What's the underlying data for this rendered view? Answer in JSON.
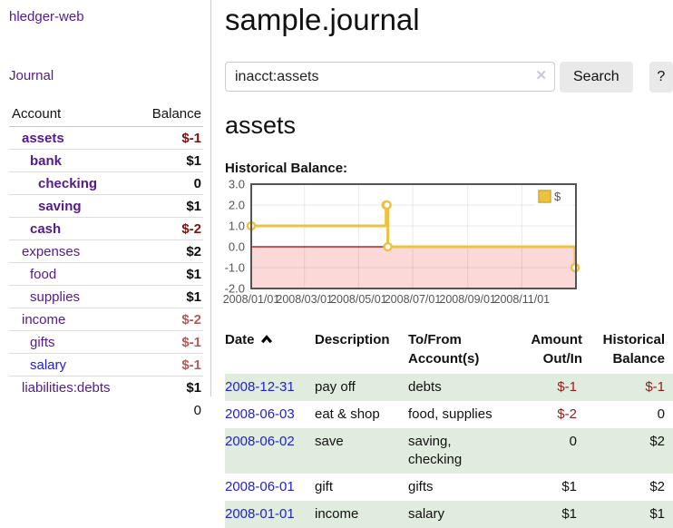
{
  "sidebar": {
    "app_title": "hledger-web",
    "nav_journal": "Journal",
    "table": {
      "headers": {
        "account": "Account",
        "balance": "Balance"
      },
      "rows": [
        {
          "name": "assets",
          "balance": "$-1",
          "depth": 1,
          "in_query": true,
          "negative": true,
          "dim": false,
          "link_blue": false
        },
        {
          "name": "bank",
          "balance": "$1",
          "depth": 2,
          "in_query": true,
          "negative": false,
          "dim": false,
          "link_blue": false
        },
        {
          "name": "checking",
          "balance": "0",
          "depth": 3,
          "in_query": true,
          "negative": false,
          "dim": false,
          "link_blue": false
        },
        {
          "name": "saving",
          "balance": "$1",
          "depth": 3,
          "in_query": true,
          "negative": false,
          "dim": false,
          "link_blue": false
        },
        {
          "name": "cash",
          "balance": "$-2",
          "depth": 2,
          "in_query": true,
          "negative": true,
          "dim": false,
          "link_blue": false
        },
        {
          "name": "expenses",
          "balance": "$2",
          "depth": 1,
          "in_query": false,
          "negative": false,
          "dim": false,
          "link_blue": false
        },
        {
          "name": "food",
          "balance": "$1",
          "depth": 2,
          "in_query": false,
          "negative": false,
          "dim": false,
          "link_blue": false
        },
        {
          "name": "supplies",
          "balance": "$1",
          "depth": 2,
          "in_query": false,
          "negative": false,
          "dim": false,
          "link_blue": false
        },
        {
          "name": "income",
          "balance": "$-2",
          "depth": 1,
          "in_query": false,
          "negative": true,
          "dim": true,
          "link_blue": false
        },
        {
          "name": "gifts",
          "balance": "$-1",
          "depth": 2,
          "in_query": false,
          "negative": true,
          "dim": true,
          "link_blue": false
        },
        {
          "name": "salary",
          "balance": "$-1",
          "depth": 2,
          "in_query": false,
          "negative": true,
          "dim": true,
          "link_blue": true
        },
        {
          "name": "liabilities:debts",
          "balance": "$1",
          "depth": 1,
          "in_query": false,
          "negative": false,
          "dim": false,
          "link_blue": false
        }
      ],
      "total": "0"
    }
  },
  "header": {
    "title": "sample.journal"
  },
  "search": {
    "query": "inacct:assets",
    "clear_icon": "✕",
    "button_label": "Search",
    "help_label": "?"
  },
  "account_page": {
    "title": "assets",
    "chart_label": "Historical Balance:"
  },
  "chart_data": {
    "type": "line",
    "title": "Historical Balance:",
    "step": true,
    "legend": "$",
    "legend_position": "top-right",
    "grid": true,
    "x_start": "2008/01/01",
    "x_end": "2009/01/01",
    "x_ticks": [
      "2008/01/01",
      "2008/03/01",
      "2008/05/01",
      "2008/07/01",
      "2008/09/01",
      "2008/11/01"
    ],
    "y_ticks": [
      "3.0",
      "2.0",
      "1.0",
      "0.0",
      "-1.0",
      "-2.0"
    ],
    "ylim": [
      -2,
      3
    ],
    "series": [
      {
        "name": "$",
        "color": "#edc240",
        "points": [
          [
            "2008/01/01",
            1
          ],
          [
            "2008/06/01",
            2
          ],
          [
            "2008/06/02",
            2
          ],
          [
            "2008/06/03",
            0
          ],
          [
            "2008/12/31",
            -1
          ]
        ]
      }
    ],
    "negative_region_fill": "#fbd9d9",
    "zero_line_color": "#a40000"
  },
  "register": {
    "header": {
      "date": "Date",
      "description": "Description",
      "tofrom_line1": "To/From",
      "tofrom_line2": "Account(s)",
      "amount_line1": "Amount",
      "amount_line2": "Out/In",
      "balance_line1": "Historical",
      "balance_line2": "Balance"
    },
    "rows": [
      {
        "date": "2008-12-31",
        "description": "pay off",
        "accounts": "debts",
        "amount": "$-1",
        "amount_negative": true,
        "balance": "$-1",
        "balance_negative": true
      },
      {
        "date": "2008-06-03",
        "description": "eat & shop",
        "accounts": "food, supplies",
        "amount": "$-2",
        "amount_negative": true,
        "balance": "0",
        "balance_negative": false
      },
      {
        "date": "2008-06-02",
        "description": "save",
        "accounts": "saving, checking",
        "amount": "0",
        "amount_negative": false,
        "balance": "$2",
        "balance_negative": false
      },
      {
        "date": "2008-06-01",
        "description": "gift",
        "accounts": "gifts",
        "amount": "$1",
        "amount_negative": false,
        "balance": "$2",
        "balance_negative": false
      },
      {
        "date": "2008-01-01",
        "description": "income",
        "accounts": "salary",
        "amount": "$1",
        "amount_negative": false,
        "balance": "$1",
        "balance_negative": false
      }
    ]
  }
}
